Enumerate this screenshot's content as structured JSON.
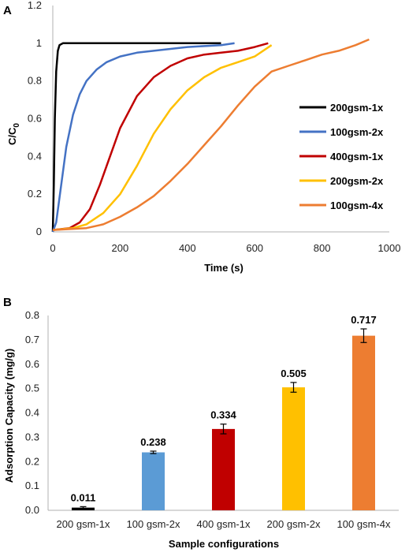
{
  "chart_data": [
    {
      "panel_label": "A",
      "type": "line",
      "xlabel": "Time (s)",
      "ylabel": "C/C",
      "ylabel_sub": "0",
      "xlim": [
        0,
        1000
      ],
      "ylim": [
        0,
        1.2
      ],
      "xticks": [
        "0",
        "200",
        "400",
        "600",
        "800",
        "1000"
      ],
      "yticks": [
        "0",
        "0.2",
        "0.4",
        "0.6",
        "0.8",
        "1",
        "1.2"
      ],
      "legend_position": "right",
      "series": [
        {
          "name": "200gsm-1x",
          "color": "#000000",
          "x": [
            0,
            3,
            6,
            10,
            15,
            20,
            30,
            60,
            120,
            250,
            400,
            500
          ],
          "y": [
            0,
            0.25,
            0.6,
            0.85,
            0.96,
            0.99,
            1.0,
            1.0,
            1.0,
            1.0,
            1.0,
            1.0
          ]
        },
        {
          "name": "100gsm-2x",
          "color": "#4472C4",
          "x": [
            0,
            10,
            25,
            40,
            60,
            80,
            100,
            130,
            160,
            200,
            250,
            300,
            400,
            500,
            540
          ],
          "y": [
            0,
            0.05,
            0.25,
            0.45,
            0.62,
            0.73,
            0.8,
            0.86,
            0.9,
            0.93,
            0.95,
            0.96,
            0.98,
            0.99,
            1.0
          ]
        },
        {
          "name": "400gsm-1x",
          "color": "#C00000",
          "x": [
            0,
            50,
            80,
            110,
            140,
            170,
            200,
            250,
            300,
            350,
            400,
            450,
            500,
            550,
            600,
            640
          ],
          "y": [
            0.01,
            0.02,
            0.05,
            0.12,
            0.25,
            0.4,
            0.55,
            0.72,
            0.82,
            0.88,
            0.92,
            0.94,
            0.95,
            0.96,
            0.98,
            1.0
          ]
        },
        {
          "name": "200gsm-2x",
          "color": "#FFC000",
          "x": [
            0,
            60,
            100,
            150,
            200,
            250,
            300,
            350,
            400,
            450,
            500,
            550,
            600,
            650
          ],
          "y": [
            0.01,
            0.02,
            0.04,
            0.1,
            0.2,
            0.35,
            0.52,
            0.65,
            0.75,
            0.82,
            0.87,
            0.9,
            0.93,
            0.99
          ]
        },
        {
          "name": "100gsm-4x",
          "color": "#ED7D31",
          "x": [
            0,
            100,
            150,
            200,
            250,
            300,
            350,
            400,
            450,
            500,
            550,
            600,
            650,
            700,
            750,
            800,
            850,
            900,
            940
          ],
          "y": [
            0.01,
            0.02,
            0.04,
            0.08,
            0.13,
            0.19,
            0.27,
            0.36,
            0.46,
            0.56,
            0.67,
            0.77,
            0.85,
            0.88,
            0.91,
            0.94,
            0.96,
            0.99,
            1.02
          ]
        }
      ]
    },
    {
      "panel_label": "B",
      "type": "bar",
      "xlabel": "Sample configurations",
      "ylabel": "Adsorption Capacity (mg/g)",
      "ylim": [
        0,
        0.8
      ],
      "yticks": [
        "0.0",
        "0.1",
        "0.2",
        "0.3",
        "0.4",
        "0.5",
        "0.6",
        "0.7",
        "0.8"
      ],
      "categories": [
        "200 gsm-1x",
        "100 gsm-2x",
        "400 gsm-1x",
        "200 gsm-2x",
        "100 gsm-4x"
      ],
      "values": [
        0.011,
        0.238,
        0.334,
        0.505,
        0.717
      ],
      "value_labels": [
        "0.011",
        "0.238",
        "0.334",
        "0.505",
        "0.717"
      ],
      "errors": [
        0.004,
        0.005,
        0.02,
        0.02,
        0.028
      ],
      "colors": [
        "#000000",
        "#5B9BD5",
        "#C00000",
        "#FFC000",
        "#ED7D31"
      ]
    }
  ]
}
